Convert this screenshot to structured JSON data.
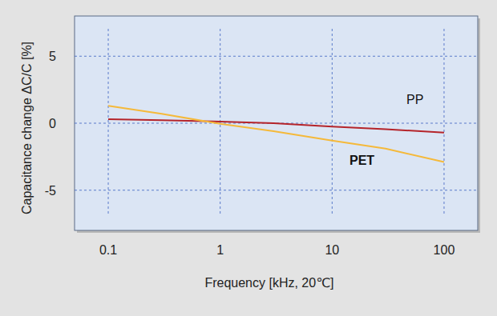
{
  "chart_data": {
    "type": "line",
    "x_label": "Frequency [kHz, 20℃]",
    "y_label": "Capacitance change ΔC/C [%]",
    "x": [
      0.1,
      0.3,
      1,
      3,
      10,
      30,
      100
    ],
    "series": [
      {
        "name": "PP",
        "color": "#b5242a",
        "values": [
          0.3,
          0.22,
          0.12,
          0.0,
          -0.25,
          -0.45,
          -0.7
        ]
      },
      {
        "name": "PET",
        "color": "#f5b93a",
        "values": [
          1.3,
          0.7,
          -0.05,
          -0.6,
          -1.3,
          -1.9,
          -2.9
        ]
      }
    ],
    "log": "x",
    "xlim": [
      0.05,
      200
    ],
    "xticks": [
      0.1,
      1,
      10,
      100
    ],
    "ylim": [
      -8,
      8
    ],
    "yticks": [
      -5,
      0,
      5
    ],
    "grid": true
  }
}
